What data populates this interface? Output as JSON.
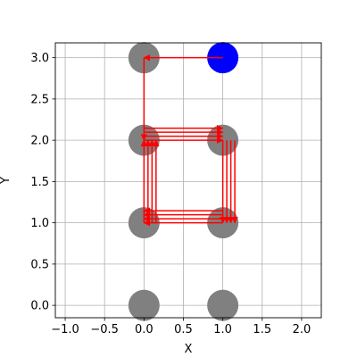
{
  "chart_data": {
    "type": "scatter",
    "title": "",
    "xlabel": "X",
    "ylabel": "Y",
    "xlim": [
      -1.125,
      2.25
    ],
    "ylim": [
      -0.15,
      3.18
    ],
    "xticks": [
      -1.0,
      -0.5,
      0.0,
      0.5,
      1.0,
      1.5,
      2.0
    ],
    "xtick_labels": [
      "−1.0",
      "−0.5",
      "0.0",
      "0.5",
      "1.0",
      "1.5",
      "2.0"
    ],
    "yticks": [
      0.0,
      0.5,
      1.0,
      1.5,
      2.0,
      2.5,
      3.0
    ],
    "ytick_labels": [
      "0.0",
      "0.5",
      "1.0",
      "1.5",
      "2.0",
      "2.5",
      "3.0"
    ],
    "grid": true,
    "aspect": "equal",
    "colors": {
      "node": "#808080",
      "highlight": "#0000ff",
      "arrow": "#ff0000",
      "grid": "#b0b0b0"
    },
    "nodes": [
      {
        "x": 0,
        "y": 0,
        "color": "#808080"
      },
      {
        "x": 1,
        "y": 0,
        "color": "#808080"
      },
      {
        "x": 0,
        "y": 1,
        "color": "#808080"
      },
      {
        "x": 1,
        "y": 1,
        "color": "#808080"
      },
      {
        "x": 0,
        "y": 2,
        "color": "#808080"
      },
      {
        "x": 1,
        "y": 2,
        "color": "#808080"
      },
      {
        "x": 0,
        "y": 3,
        "color": "#808080"
      },
      {
        "x": 1,
        "y": 3,
        "color": "#0000ff"
      }
    ],
    "arrows": [
      {
        "from": [
          1,
          3
        ],
        "to": [
          0,
          3
        ]
      },
      {
        "from": [
          0,
          3
        ],
        "to": [
          0,
          2
        ]
      },
      {
        "from": [
          0,
          2
        ],
        "to": [
          1,
          2
        ]
      },
      {
        "from": [
          1,
          2
        ],
        "to": [
          1,
          1
        ]
      },
      {
        "from": [
          1,
          1
        ],
        "to": [
          0,
          1
        ]
      },
      {
        "from": [
          0,
          1
        ],
        "to": [
          0,
          2
        ]
      },
      {
        "from": [
          0,
          2
        ],
        "to": [
          1,
          2
        ]
      },
      {
        "from": [
          1,
          2
        ],
        "to": [
          1,
          1
        ]
      },
      {
        "from": [
          1,
          1
        ],
        "to": [
          0,
          1
        ]
      },
      {
        "from": [
          0,
          1
        ],
        "to": [
          0,
          2
        ]
      },
      {
        "from": [
          0,
          2
        ],
        "to": [
          1,
          2
        ]
      },
      {
        "from": [
          1,
          2
        ],
        "to": [
          1,
          1
        ]
      },
      {
        "from": [
          1,
          1
        ],
        "to": [
          0,
          1
        ]
      },
      {
        "from": [
          0,
          1
        ],
        "to": [
          0,
          2
        ]
      },
      {
        "from": [
          0,
          2
        ],
        "to": [
          1,
          2
        ]
      },
      {
        "from": [
          1,
          2
        ],
        "to": [
          1,
          1
        ]
      },
      {
        "from": [
          1,
          1
        ],
        "to": [
          0,
          1
        ]
      },
      {
        "from": [
          0,
          1
        ],
        "to": [
          0,
          2
        ]
      }
    ]
  }
}
